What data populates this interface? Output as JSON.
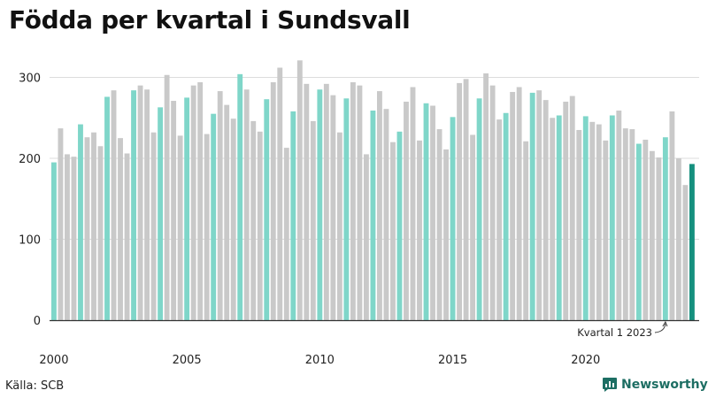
{
  "title": "Födda per kvartal i Sundsvall",
  "source": "Källa: SCB",
  "brand": {
    "name": "Newsworthy",
    "logo_icon": "newsworthy-logo-icon"
  },
  "colors": {
    "q1": "#7fd6c9",
    "other": "#c9c9c9",
    "highlight": "#15907e",
    "grid": "#dcdcdc",
    "axis": "#333333"
  },
  "chart_data": {
    "type": "bar",
    "title": "Födda per kvartal i Sundsvall",
    "xlabel": "",
    "ylabel": "",
    "ylim": [
      0,
      320
    ],
    "yticks": [
      0,
      100,
      200,
      300
    ],
    "xticks": [
      {
        "label": "2000",
        "year": 2000
      },
      {
        "label": "2005",
        "year": 2005
      },
      {
        "label": "2010",
        "year": 2010
      },
      {
        "label": "2015",
        "year": 2015
      },
      {
        "label": "2020",
        "year": 2020
      }
    ],
    "grid": true,
    "start": {
      "year": 2000,
      "quarter": 1
    },
    "values": [
      195,
      237,
      205,
      202,
      242,
      226,
      232,
      215,
      276,
      284,
      225,
      206,
      284,
      290,
      285,
      232,
      263,
      303,
      271,
      228,
      275,
      290,
      294,
      230,
      255,
      283,
      266,
      249,
      304,
      285,
      246,
      233,
      273,
      294,
      312,
      213,
      258,
      321,
      292,
      246,
      285,
      292,
      278,
      232,
      274,
      294,
      290,
      205,
      259,
      283,
      261,
      220,
      233,
      270,
      288,
      222,
      268,
      265,
      236,
      211,
      251,
      293,
      298,
      229,
      274,
      305,
      290,
      248,
      256,
      282,
      288,
      221,
      281,
      284,
      272,
      250,
      253,
      270,
      277,
      235,
      252,
      245,
      242,
      222,
      253,
      259,
      237,
      236,
      218,
      223,
      209,
      201,
      226,
      258,
      200,
      167,
      193
    ],
    "annotation": {
      "label": "Kvartal 1 2023",
      "year": 2023,
      "quarter": 1
    }
  }
}
